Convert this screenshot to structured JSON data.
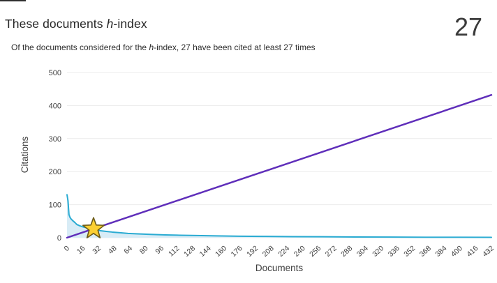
{
  "panel": {
    "title": {
      "prefix": "These documents ",
      "italic": "h",
      "suffix": "-index"
    },
    "value": "27",
    "subtitle": {
      "prefix": "Of the documents considered for the ",
      "italic": "h",
      "suffix": "-index, 27 have been cited at least 27 times"
    }
  },
  "chart_data": {
    "type": "area",
    "title": "These documents h-index",
    "xlabel": "Documents",
    "ylabel": "Citations",
    "xlim": [
      0,
      432
    ],
    "ylim": [
      0,
      500
    ],
    "grid": true,
    "legend": "none",
    "x_ticks": [
      0,
      16,
      32,
      48,
      64,
      80,
      96,
      112,
      128,
      144,
      160,
      176,
      192,
      208,
      224,
      240,
      256,
      272,
      288,
      304,
      320,
      336,
      352,
      368,
      384,
      400,
      416,
      432
    ],
    "y_ticks": [
      0,
      100,
      200,
      300,
      400,
      500
    ],
    "colors": {
      "gridline": "#ebebeb",
      "tick_text": "#3f3f3f",
      "axis_title_text": "#333333"
    },
    "series": [
      {
        "name": "citations-per-document-descending",
        "type": "area",
        "color": "#2aabd2",
        "fill": "#d8ecf6",
        "stroke_width": 2,
        "points": [
          [
            0,
            130
          ],
          [
            1,
            112
          ],
          [
            2,
            70
          ],
          [
            3,
            62
          ],
          [
            4,
            57
          ],
          [
            6,
            51
          ],
          [
            8,
            46
          ],
          [
            10,
            40
          ],
          [
            13,
            36
          ],
          [
            16,
            33
          ],
          [
            20,
            30
          ],
          [
            23,
            28.5
          ],
          [
            27,
            27
          ],
          [
            30,
            24
          ],
          [
            34,
            21
          ],
          [
            40,
            19
          ],
          [
            46,
            17
          ],
          [
            54,
            15
          ],
          [
            62,
            13
          ],
          [
            72,
            11.5
          ],
          [
            85,
            10
          ],
          [
            100,
            8.5
          ],
          [
            115,
            7.5
          ],
          [
            132,
            6.5
          ],
          [
            152,
            5.5
          ],
          [
            175,
            4.5
          ],
          [
            200,
            4
          ],
          [
            230,
            3.2
          ],
          [
            260,
            2.8
          ],
          [
            295,
            2.2
          ],
          [
            330,
            1.8
          ],
          [
            365,
            1.4
          ],
          [
            400,
            1.2
          ],
          [
            432,
            1
          ]
        ]
      },
      {
        "name": "h-index-reference-line",
        "type": "line",
        "color": "#5f2eba",
        "stroke_width": 2.5,
        "points": [
          [
            0,
            0
          ],
          [
            432,
            432
          ]
        ]
      }
    ],
    "h_index_marker": {
      "shape": "star",
      "x": 27,
      "y": 27,
      "fill": "#fbcf33",
      "stroke": "#6b5a18",
      "label": "h-index point (27, 27)"
    }
  }
}
